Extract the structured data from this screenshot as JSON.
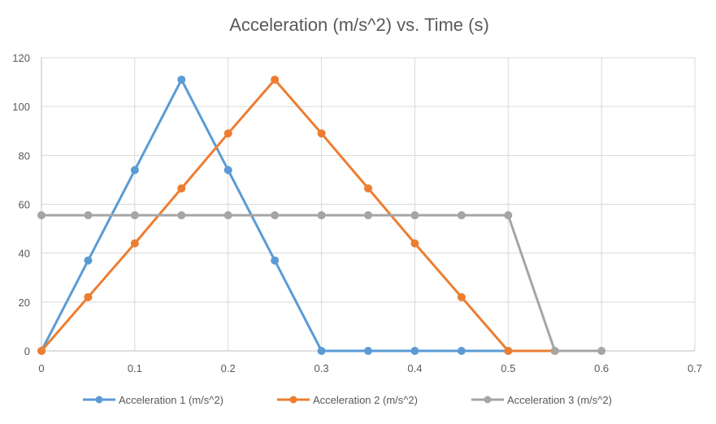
{
  "chart_data": {
    "type": "line",
    "title": "Acceleration (m/s^2)  vs. Time (s)",
    "xlabel": "",
    "ylabel": "",
    "xlim": [
      0,
      0.7
    ],
    "ylim": [
      0,
      120
    ],
    "x_ticks": [
      0,
      0.1,
      0.2,
      0.3,
      0.4,
      0.5,
      0.6,
      0.7
    ],
    "y_ticks": [
      0,
      20,
      40,
      60,
      80,
      100,
      120
    ],
    "grid": true,
    "legend_position": "bottom",
    "series": [
      {
        "name": "Acceleration 1 (m/s^2)",
        "color": "#5B9BD5",
        "x": [
          0,
          0.05,
          0.1,
          0.15,
          0.2,
          0.25,
          0.3,
          0.35,
          0.4,
          0.45,
          0.5
        ],
        "y": [
          0,
          37,
          74,
          111,
          74,
          37,
          0,
          0,
          0,
          0,
          0
        ]
      },
      {
        "name": "Acceleration 2 (m/s^2)",
        "color": "#ED7D31",
        "x": [
          0,
          0.05,
          0.1,
          0.15,
          0.2,
          0.25,
          0.3,
          0.35,
          0.4,
          0.45,
          0.5,
          0.55
        ],
        "y": [
          0,
          22,
          44,
          66.5,
          89,
          111,
          89,
          66.5,
          44,
          22,
          0,
          0
        ]
      },
      {
        "name": "Acceleration 3 (m/s^2)",
        "color": "#A5A5A5",
        "x": [
          0,
          0.05,
          0.1,
          0.15,
          0.2,
          0.25,
          0.3,
          0.35,
          0.4,
          0.45,
          0.5,
          0.55,
          0.6
        ],
        "y": [
          55.5,
          55.5,
          55.5,
          55.5,
          55.5,
          55.5,
          55.5,
          55.5,
          55.5,
          55.5,
          55.5,
          0,
          0
        ]
      }
    ]
  }
}
